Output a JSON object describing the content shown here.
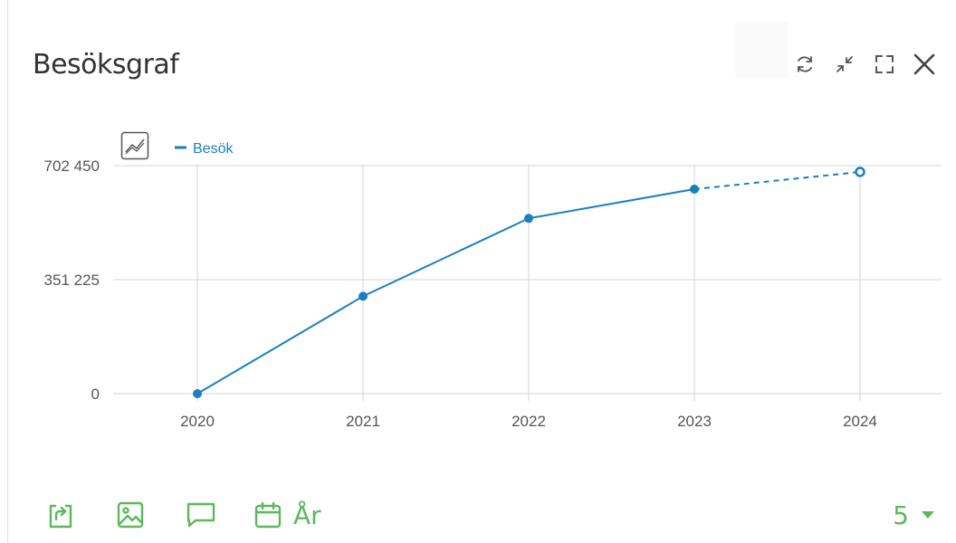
{
  "widget": {
    "title": "Besöksgraf"
  },
  "icons": {
    "refresh": "refresh-icon",
    "minimize": "minimize-icon",
    "fullscreen": "fullscreen-icon",
    "close": "close-icon",
    "chart_type": "chart-type-icon",
    "export": "export-icon",
    "image": "image-icon",
    "comment": "comment-icon",
    "calendar": "calendar-icon",
    "dropdown": "caret-down-icon"
  },
  "colors": {
    "series": "#1a7fc1",
    "action": "#5cb85c",
    "grid": "#d4d4d4",
    "axis_text": "#555555"
  },
  "footer": {
    "period_label": "År",
    "count_value": "5"
  },
  "chart_data": {
    "type": "line",
    "categories": [
      "2020",
      "2021",
      "2022",
      "2023",
      "2024"
    ],
    "series": [
      {
        "name": "Besök",
        "values": [
          0,
          300000,
          540000,
          630000,
          683000
        ],
        "projected_from_index": 3
      }
    ],
    "y_ticks": [
      "0",
      "351 225",
      "702 450"
    ],
    "ylim": [
      0,
      702450
    ],
    "grid": true,
    "legend": "top-left"
  }
}
